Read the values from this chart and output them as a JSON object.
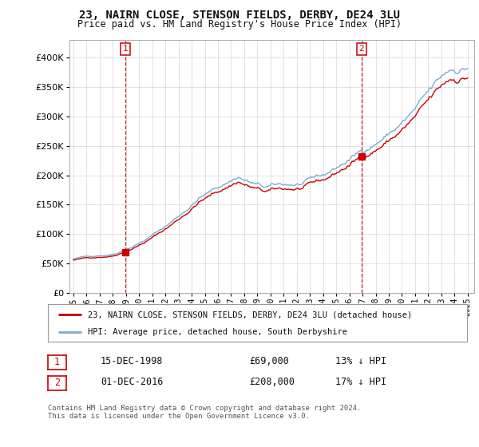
{
  "title": "23, NAIRN CLOSE, STENSON FIELDS, DERBY, DE24 3LU",
  "subtitle": "Price paid vs. HM Land Registry's House Price Index (HPI)",
  "ytick_vals": [
    0,
    50000,
    100000,
    150000,
    200000,
    250000,
    300000,
    350000,
    400000
  ],
  "ylim": [
    0,
    430000
  ],
  "xlim_start": 1994.7,
  "xlim_end": 2025.5,
  "sale1_date": 1998.958,
  "sale1_price": 69000,
  "sale2_date": 2016.917,
  "sale2_price": 208000,
  "hpi_color": "#7aadd4",
  "price_color": "#cc0000",
  "legend_label_price": "23, NAIRN CLOSE, STENSON FIELDS, DERBY, DE24 3LU (detached house)",
  "legend_label_hpi": "HPI: Average price, detached house, South Derbyshire",
  "note1_label": "1",
  "note1_date": "15-DEC-1998",
  "note1_price": "£69,000",
  "note1_hpi": "13% ↓ HPI",
  "note2_label": "2",
  "note2_date": "01-DEC-2016",
  "note2_price": "£208,000",
  "note2_hpi": "17% ↓ HPI",
  "footer": "Contains HM Land Registry data © Crown copyright and database right 2024.\nThis data is licensed under the Open Government Licence v3.0.",
  "background_color": "#ffffff",
  "grid_color": "#dddddd"
}
